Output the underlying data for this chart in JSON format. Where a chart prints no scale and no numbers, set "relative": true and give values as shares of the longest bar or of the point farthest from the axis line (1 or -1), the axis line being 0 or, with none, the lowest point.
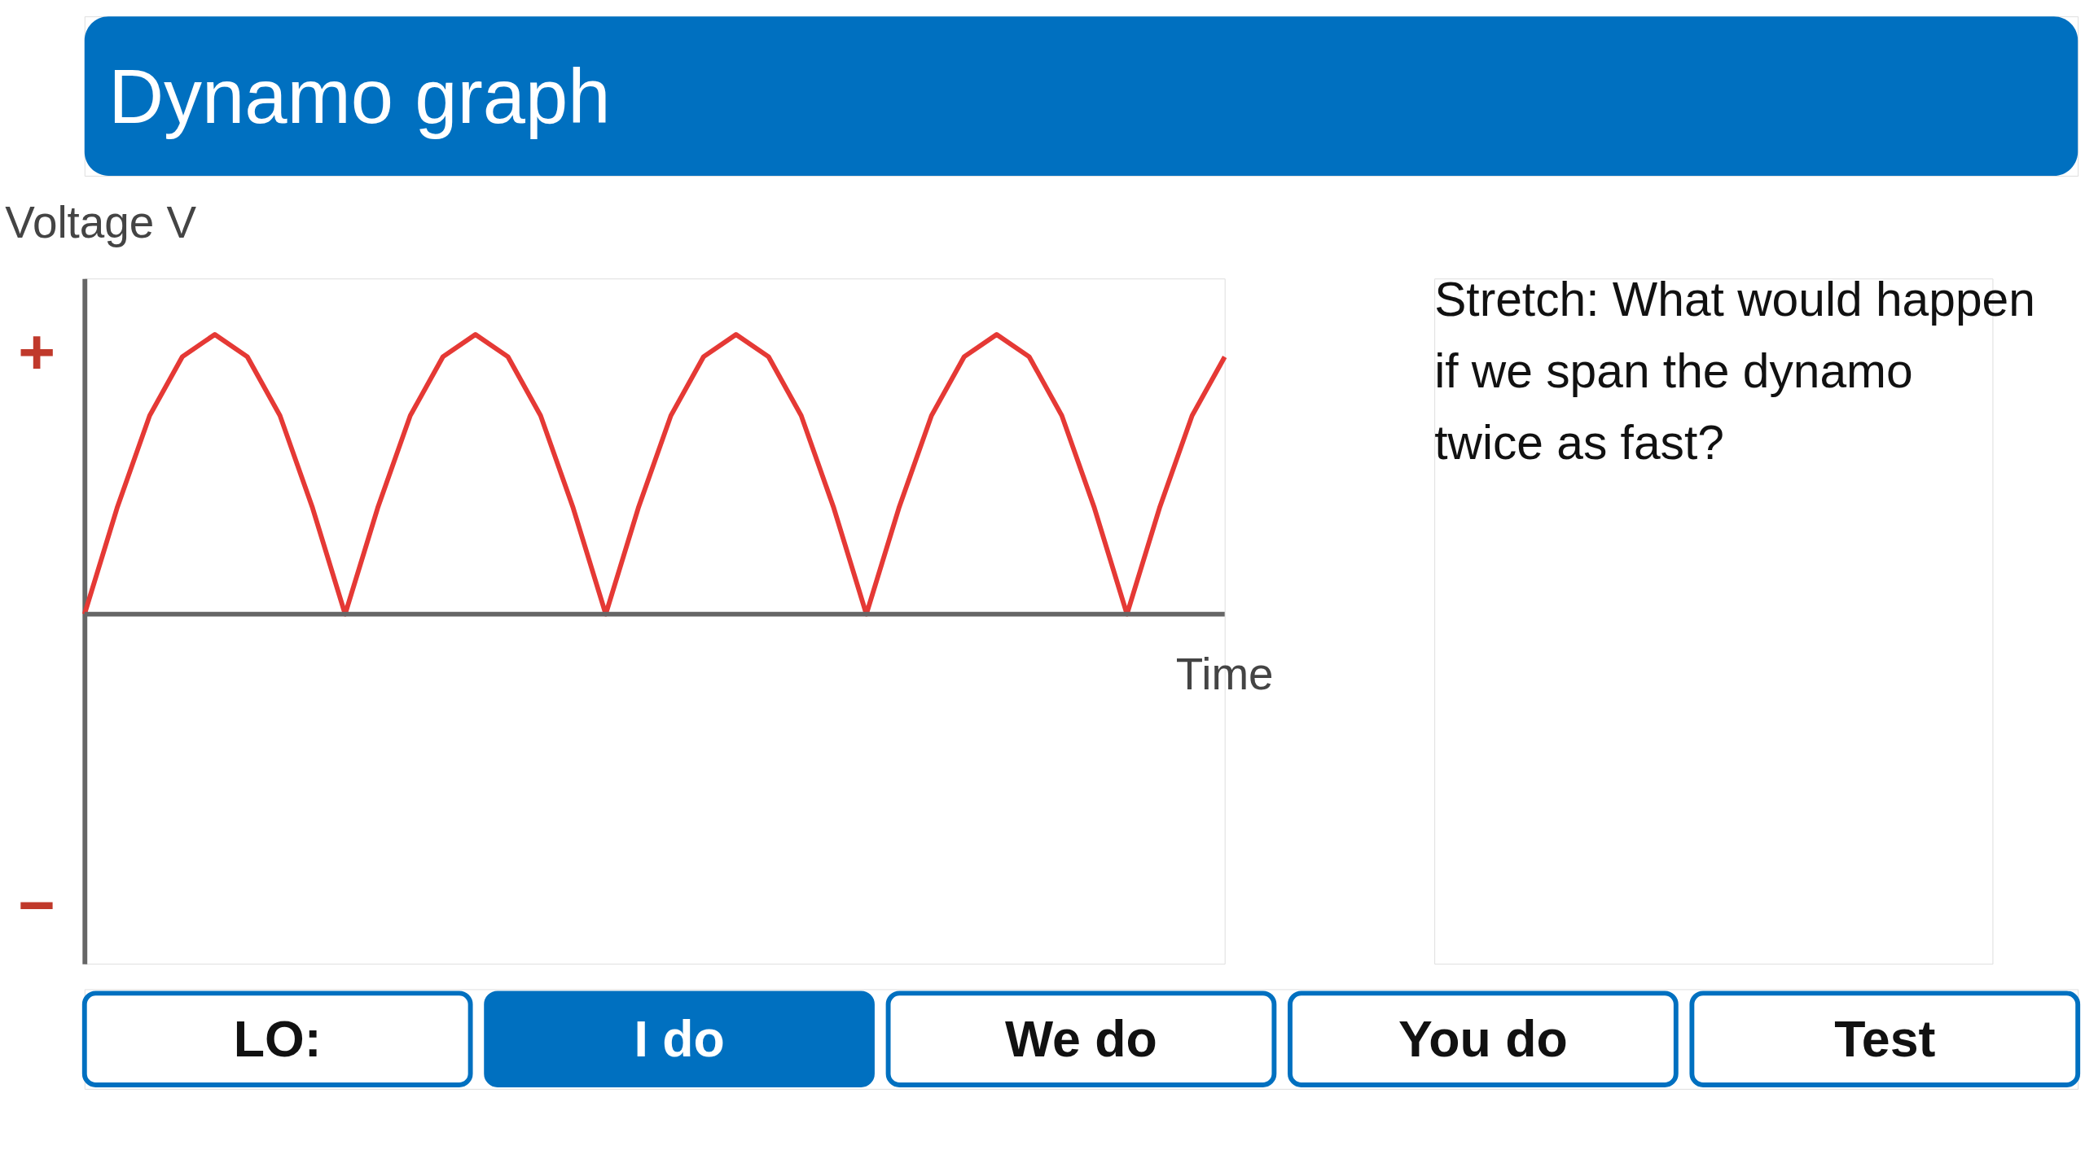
{
  "chart_data": {
    "type": "line",
    "title": "Dynamo graph",
    "ylabel": "Voltage V",
    "xlabel": "Time",
    "relative": true,
    "categories": [
      null,
      null,
      null,
      null,
      null,
      null,
      null,
      null,
      null,
      null,
      null,
      null,
      null,
      null,
      null,
      null,
      null,
      null,
      null,
      null,
      null,
      null,
      null,
      null,
      null,
      null,
      null,
      null,
      null,
      null,
      null,
      null,
      null,
      null,
      null,
      null
    ],
    "series": [
      {
        "color": "#e53935",
        "values": [
          0,
          0.38,
          0.71,
          0.92,
          1,
          0.92,
          0.71,
          0.38,
          0,
          0.38,
          0.71,
          0.92,
          1,
          0.92,
          0.71,
          0.38,
          0,
          0.38,
          0.71,
          0.92,
          1,
          0.92,
          0.71,
          0.38,
          0,
          0.38,
          0.71,
          0.92,
          1,
          0.92,
          0.71,
          0.38,
          0,
          0.38,
          0.71,
          0.92
        ]
      }
    ],
    "annotations": [
      "+",
      "−",
      "Stretch: What would happen if we span the dynamo twice as fast?",
      "LO:",
      "I do",
      "We do",
      "You do",
      "Test"
    ],
    "grid": false
  }
}
